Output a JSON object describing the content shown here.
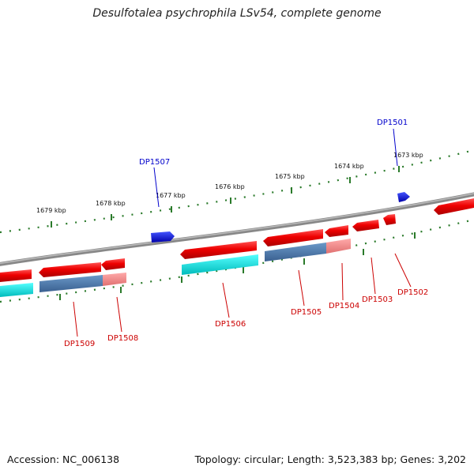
{
  "title": "Desulfotalea psychrophila LSv54, complete genome",
  "accession_text": "Accession: NC_006138",
  "summary_text": "Topology: circular; Length: 3,523,383 bp; Genes: 3,202",
  "colors": {
    "forward_gene": "#ee0000",
    "forward_gene_blue": "#1111ee",
    "cds_cyan": "#00dddd",
    "cds_steel": "#4a7aaa",
    "cds_pink": "#f08888",
    "backbone": "#777777",
    "tick": "#2a7a2a",
    "red_label": "#cc0000",
    "blue_label": "#0000cc"
  },
  "kbp_ticks": [
    "1673 kbp",
    "1674 kbp",
    "1675 kbp",
    "1676 kbp",
    "1677 kbp",
    "1678 kbp",
    "1679 kbp"
  ],
  "genes": [
    {
      "label": "DP1501",
      "color": "blue"
    },
    {
      "label": "DP1502",
      "color": "red"
    },
    {
      "label": "DP1503",
      "color": "red"
    },
    {
      "label": "DP1504",
      "color": "red"
    },
    {
      "label": "DP1505",
      "color": "red"
    },
    {
      "label": "DP1506",
      "color": "red"
    },
    {
      "label": "DP1507",
      "color": "blue"
    },
    {
      "label": "DP1508",
      "color": "red"
    },
    {
      "label": "DP1509",
      "color": "red"
    }
  ]
}
